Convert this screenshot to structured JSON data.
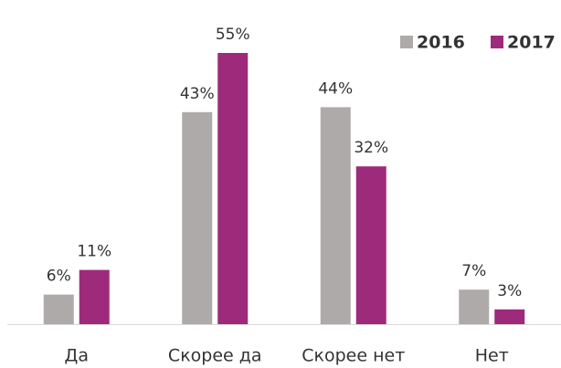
{
  "chart_data": {
    "type": "bar",
    "categories": [
      "Да",
      "Скорее да",
      "Скорее нет",
      "Нет"
    ],
    "series": [
      {
        "name": "2016",
        "color": "#aeaaaa",
        "values": [
          6,
          43,
          44,
          7
        ],
        "value_labels": [
          "6%",
          "43%",
          "44%",
          "7%"
        ]
      },
      {
        "name": "2017",
        "color": "#9e2a7c",
        "values": [
          11,
          55,
          32,
          3
        ],
        "value_labels": [
          "11%",
          "55%",
          "32%",
          "3%"
        ]
      }
    ],
    "legend": "top-right"
  }
}
